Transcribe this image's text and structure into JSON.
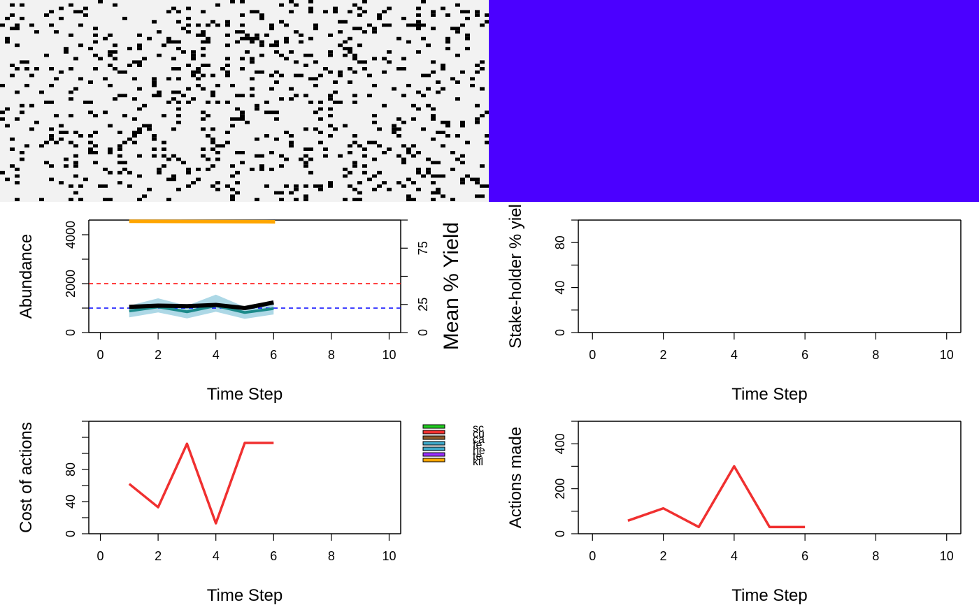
{
  "colors": {
    "landscape_bg": "#f2f2f2",
    "landscape_cell": "#000000",
    "ownership": "#4b00ff",
    "abundance_band": "#add8e6",
    "abundance_actual": "#1b8a8a",
    "abundance_est": "#000000",
    "manager_target": "#ff0000",
    "user_target": "#0000ff",
    "yield_line": "#ffa500",
    "cost_line": "#f03030",
    "actions_line": "#f03030",
    "legend": [
      "#22cc22",
      "#f03030",
      "#8b5a2b",
      "#3fa9c9",
      "#3fa9c9",
      "#9b30ff",
      "#ffa500"
    ]
  },
  "chart_data": [
    {
      "type": "heatmap",
      "name": "landscape",
      "description_hidden": true
    },
    {
      "type": "heatmap",
      "name": "ownership"
    },
    {
      "type": "line",
      "xlabel": "Time Step",
      "ylabel": "Abundance",
      "ylabel_right": "Mean % Yield",
      "xlim": [
        -0.4,
        10.4
      ],
      "ylim": [
        0,
        4600
      ],
      "xticks": [
        "0",
        "2",
        "4",
        "6",
        "8",
        "10"
      ],
      "yticks": [
        "0",
        "2000",
        "4000"
      ],
      "yticks_right": [
        "0",
        "25",
        "75"
      ],
      "hlines": [
        2000,
        1000
      ],
      "x": [
        1,
        2,
        3,
        4,
        5,
        6
      ],
      "series": [
        {
          "values": [
            1050,
            1100,
            1080,
            1130,
            1000,
            1230
          ]
        },
        {
          "values": [
            880,
            1050,
            850,
            1100,
            820,
            980
          ]
        },
        {
          "lower": [
            620,
            820,
            580,
            850,
            560,
            740
          ],
          "upper": [
            1100,
            1400,
            1100,
            1550,
            1050,
            1200
          ]
        },
        {
          "values": [
            4550,
            4550,
            4550,
            4550,
            4540,
            4530
          ]
        }
      ]
    },
    {
      "type": "line",
      "xlabel": "Time Step",
      "ylabel": "Stake-holder % yiel",
      "xlim": [
        -0.4,
        10.4
      ],
      "ylim": [
        0,
        100
      ],
      "xticks": [
        "0",
        "2",
        "4",
        "6",
        "8",
        "10"
      ],
      "yticks": [
        "0",
        "40",
        "80"
      ]
    },
    {
      "type": "line",
      "xlabel": "Time Step",
      "ylabel": "Cost of actions",
      "xlim": [
        -0.4,
        10.4
      ],
      "ylim": [
        0,
        140
      ],
      "xticks": [
        "0",
        "2",
        "4",
        "6",
        "8",
        "10"
      ],
      "yticks": [
        "0",
        "40",
        "80"
      ],
      "x": [
        1,
        2,
        3,
        4,
        5,
        6
      ],
      "series": [
        {
          "values": [
            62,
            33,
            112,
            13,
            113,
            113
          ]
        }
      ],
      "legend": [
        "sc",
        "cu",
        "ca",
        "fe",
        "he",
        "te",
        "kil"
      ]
    },
    {
      "type": "line",
      "xlabel": "Time Step",
      "ylabel": "Actions made",
      "xlim": [
        -0.4,
        10.4
      ],
      "ylim": [
        0,
        500
      ],
      "xticks": [
        "0",
        "2",
        "4",
        "6",
        "8",
        "10"
      ],
      "yticks": [
        "0",
        "200",
        "400"
      ],
      "x": [
        1,
        2,
        3,
        4,
        5,
        6
      ],
      "series": [
        {
          "values": [
            58,
            113,
            30,
            300,
            30,
            30
          ]
        }
      ]
    }
  ]
}
